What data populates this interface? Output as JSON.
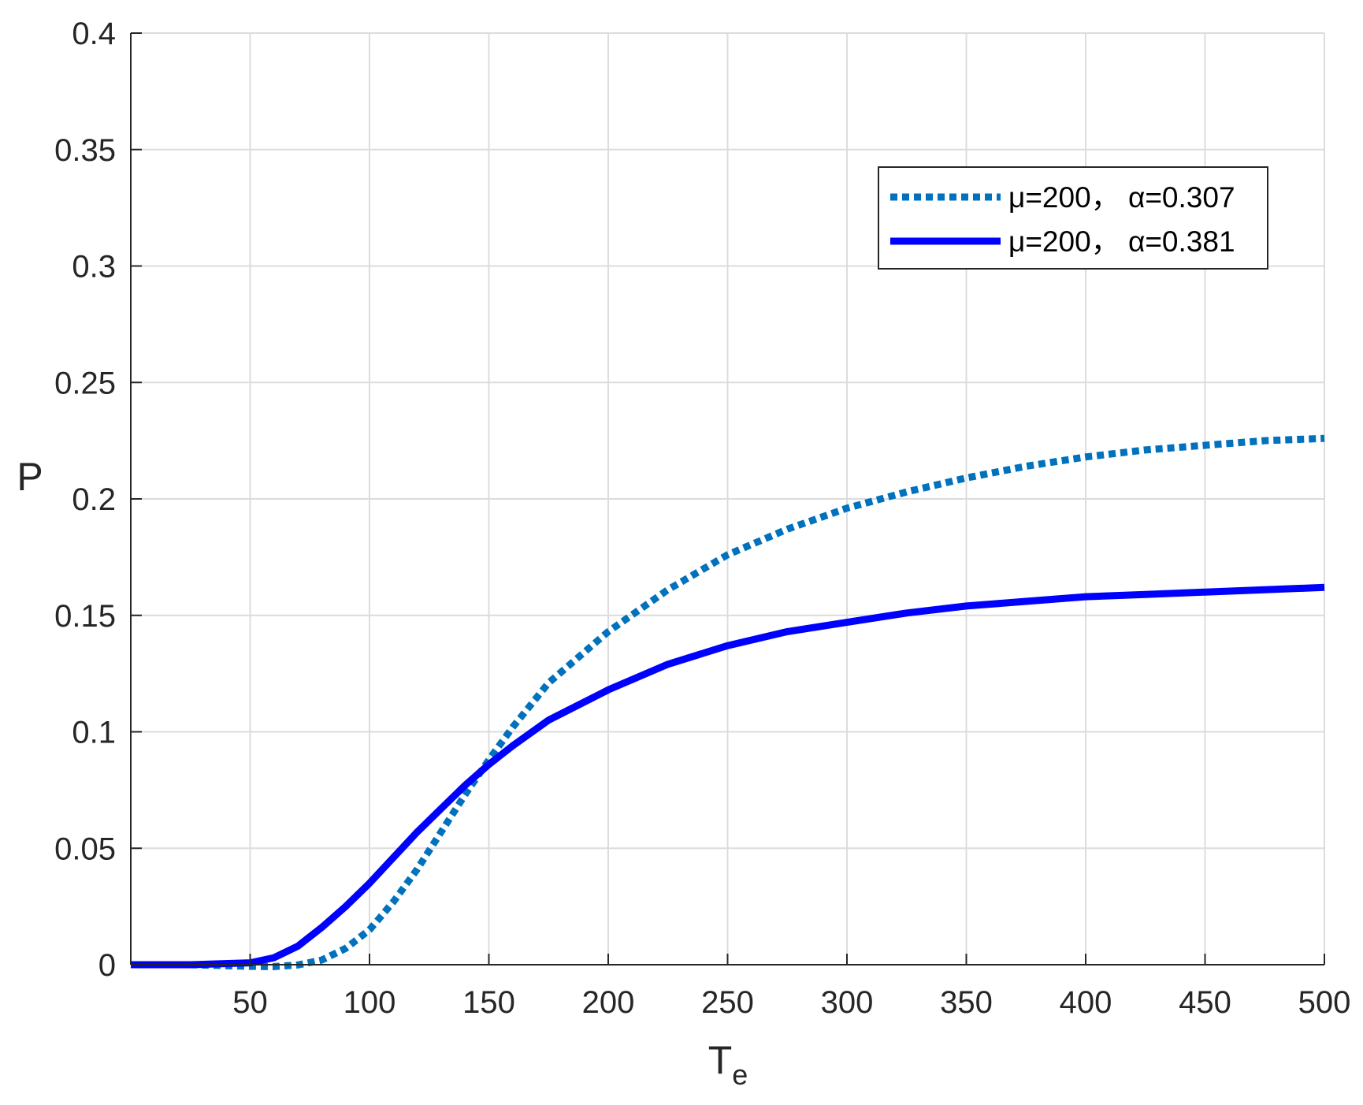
{
  "chart_data": {
    "type": "line",
    "xlabel": "T",
    "xlabel_subscript": "e",
    "ylabel": "P",
    "xlim": [
      0,
      500
    ],
    "ylim": [
      0,
      0.4
    ],
    "xticks": [
      50,
      100,
      150,
      200,
      250,
      300,
      350,
      400,
      450,
      500
    ],
    "xtick_labels": [
      "50",
      "100",
      "150",
      "200",
      "250",
      "300",
      "350",
      "400",
      "450",
      "500"
    ],
    "yticks": [
      0,
      0.05,
      0.1,
      0.15,
      0.2,
      0.25,
      0.3,
      0.35,
      0.4
    ],
    "ytick_labels": [
      "0",
      "0.05",
      "0.1",
      "0.15",
      "0.2",
      "0.25",
      "0.3",
      "0.35",
      "0.4"
    ],
    "grid": true,
    "legend_position": "top-right",
    "x": [
      0,
      25,
      50,
      60,
      70,
      80,
      90,
      100,
      110,
      120,
      130,
      140,
      150,
      160,
      175,
      200,
      225,
      250,
      275,
      300,
      325,
      350,
      375,
      400,
      425,
      450,
      475,
      500
    ],
    "series": [
      {
        "name": "μ=200， α=0.307",
        "color": "#0072BD",
        "style": "dotted",
        "values": [
          0,
          0,
          -0.0007,
          -0.0008,
          -0.0001,
          0.002,
          0.007,
          0.015,
          0.027,
          0.041,
          0.057,
          0.073,
          0.088,
          0.102,
          0.121,
          0.143,
          0.161,
          0.176,
          0.187,
          0.196,
          0.203,
          0.209,
          0.214,
          0.218,
          0.221,
          0.223,
          0.225,
          0.226
        ]
      },
      {
        "name": "μ=200， α=0.381",
        "color": "#0000FF",
        "style": "solid",
        "values": [
          0,
          0,
          0.0008,
          0.003,
          0.008,
          0.016,
          0.025,
          0.035,
          0.046,
          0.057,
          0.067,
          0.077,
          0.086,
          0.094,
          0.105,
          0.118,
          0.129,
          0.137,
          0.143,
          0.147,
          0.151,
          0.154,
          0.156,
          0.158,
          0.159,
          0.16,
          0.161,
          0.162
        ]
      }
    ]
  }
}
